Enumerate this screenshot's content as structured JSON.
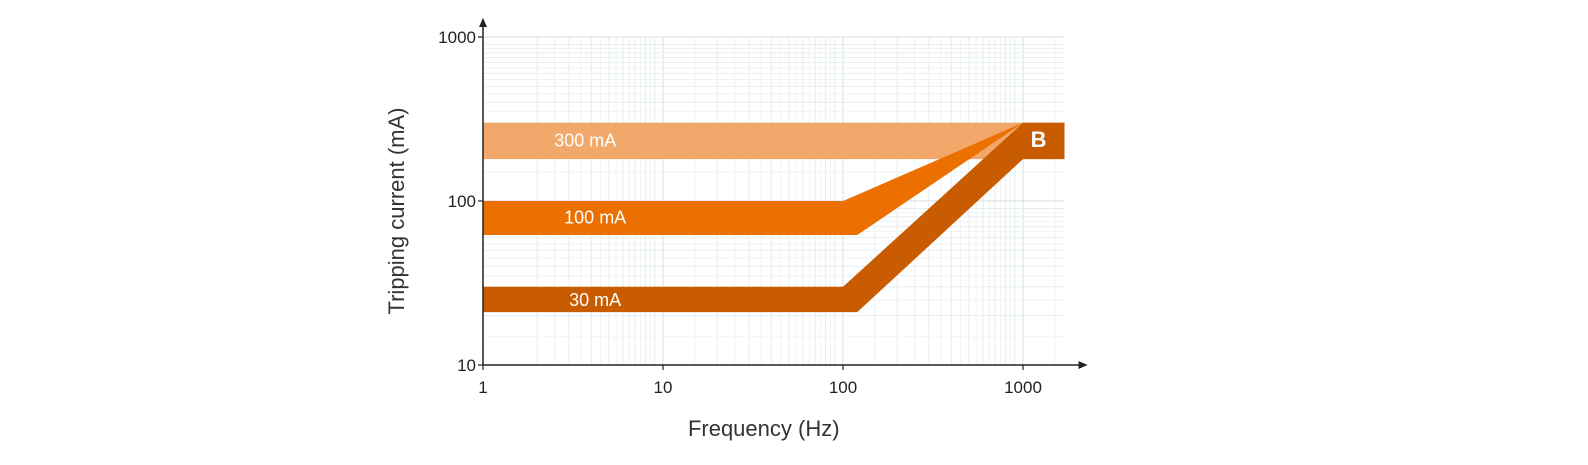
{
  "chart_data": {
    "type": "area",
    "xlabel": "Frequency (Hz)",
    "ylabel": "Tripping current (mA)",
    "x_scale": "log",
    "y_scale": "log",
    "xlim": [
      1,
      1700
    ],
    "ylim": [
      10,
      1000
    ],
    "x_ticks": [
      {
        "value": 1,
        "label": "1"
      },
      {
        "value": 10,
        "label": "10"
      },
      {
        "value": 100,
        "label": "100"
      },
      {
        "value": 1000,
        "label": "1000"
      }
    ],
    "y_ticks": [
      {
        "value": 10,
        "label": "10"
      },
      {
        "value": 100,
        "label": "100"
      },
      {
        "value": 1000,
        "label": "1000"
      }
    ],
    "grid": true,
    "series": [
      {
        "name": "300 mA",
        "color": "#f2a86a",
        "label_pos": [
          3.7,
          230
        ],
        "lower": [
          [
            1,
            180
          ],
          [
            1700,
            180
          ]
        ],
        "upper": [
          [
            1,
            300
          ],
          [
            1700,
            300
          ]
        ]
      },
      {
        "name": "100 mA",
        "color": "#ec7000",
        "label_pos": [
          4.2,
          78
        ],
        "lower": [
          [
            1,
            62
          ],
          [
            120,
            62
          ],
          [
            1000,
            300
          ]
        ],
        "upper": [
          [
            1,
            100
          ],
          [
            100,
            100
          ],
          [
            1000,
            300
          ]
        ]
      },
      {
        "name": "30 mA",
        "color": "#c95c00",
        "label_pos": [
          4.2,
          24.5
        ],
        "lower": [
          [
            1,
            21
          ],
          [
            120,
            21
          ],
          [
            1000,
            180
          ],
          [
            1700,
            180
          ]
        ],
        "upper": [
          [
            1,
            30
          ],
          [
            100,
            30
          ],
          [
            1000,
            300
          ],
          [
            1700,
            300
          ]
        ]
      }
    ],
    "annotations": [
      {
        "text": "B",
        "x": 1220,
        "y": 232
      }
    ]
  }
}
